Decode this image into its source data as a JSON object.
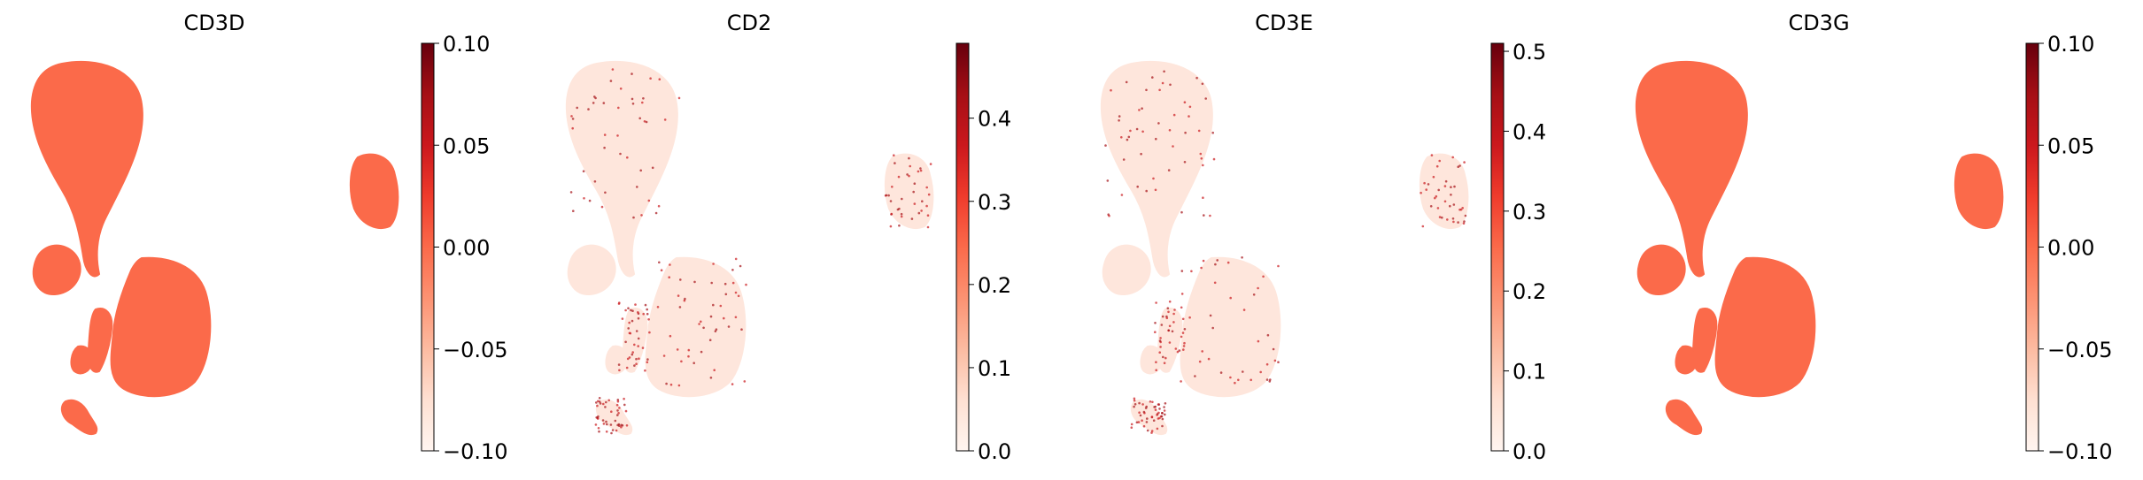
{
  "figure": {
    "background": "#ffffff"
  },
  "colormap": {
    "name": "Reds",
    "stops": [
      "#fff5f0",
      "#fee0d2",
      "#fcbba1",
      "#fc9272",
      "#fb6a4a",
      "#ef3b2c",
      "#cb181d",
      "#a50f15",
      "#67000d"
    ]
  },
  "chart_data": [
    {
      "type": "scatter",
      "title": "CD3D",
      "xlabel": "",
      "ylabel": "",
      "color_by": "expression",
      "colorbar": {
        "min": -0.1,
        "max": 0.1,
        "ticks": [
          -0.1,
          -0.05,
          0.0,
          0.05,
          0.1
        ],
        "tick_labels": [
          "−0.10",
          "−0.05",
          "0.00",
          "0.05",
          "0.10"
        ]
      },
      "values_summary": {
        "uniform_value": 0.0,
        "note": ""
      },
      "point_color": "#fb6a4a"
    },
    {
      "type": "scatter",
      "title": "CD2",
      "xlabel": "",
      "ylabel": "",
      "color_by": "expression",
      "colorbar": {
        "min": 0.0,
        "max": 0.49,
        "ticks": [
          0.0,
          0.1,
          0.2,
          0.3,
          0.4
        ],
        "tick_labels": [
          "0.0",
          "0.1",
          "0.2",
          "0.3",
          "0.4"
        ]
      },
      "values_summary": {
        "background_value": 0.0,
        "sparse_high_value": 0.49
      },
      "point_color": "#fee6dc"
    },
    {
      "type": "scatter",
      "title": "CD3E",
      "xlabel": "",
      "ylabel": "",
      "color_by": "expression",
      "colorbar": {
        "min": 0.0,
        "max": 0.51,
        "ticks": [
          0.0,
          0.1,
          0.2,
          0.3,
          0.4,
          0.5
        ],
        "tick_labels": [
          "0.0",
          "0.1",
          "0.2",
          "0.3",
          "0.4",
          "0.5"
        ]
      },
      "values_summary": {
        "background_value": 0.0,
        "sparse_high_value": 0.51
      },
      "point_color": "#fee6dc"
    },
    {
      "type": "scatter",
      "title": "CD3G",
      "xlabel": "",
      "ylabel": "",
      "color_by": "expression",
      "colorbar": {
        "min": -0.1,
        "max": 0.1,
        "ticks": [
          -0.1,
          -0.05,
          0.0,
          0.05,
          0.1
        ],
        "tick_labels": [
          "−0.10",
          "−0.05",
          "0.00",
          "0.05",
          "0.10"
        ]
      },
      "values_summary": {
        "uniform_value": 0.0
      },
      "point_color": "#fb6a4a"
    }
  ]
}
